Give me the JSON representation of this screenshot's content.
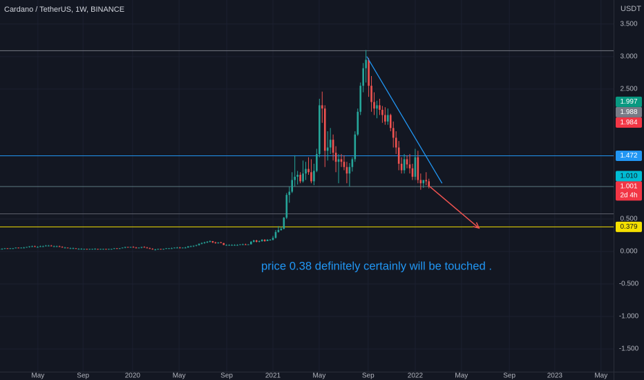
{
  "chart_data": {
    "type": "candlestick",
    "title": "Cardano / TetherUS, 1W, BINANCE",
    "currency": "USDT",
    "annotation": "price 0.38 definitely certainly will be touched .",
    "up_color": "#26a69a",
    "down_color": "#ef5350",
    "grid": true,
    "xlim": [
      0.25,
      224.5
    ],
    "ylim": [
      -1.85,
      3.87
    ],
    "xticks": [
      {
        "value": 14.1,
        "label": "May"
      },
      {
        "value": 30.6,
        "label": "Sep"
      },
      {
        "value": 48.7,
        "label": "2020"
      },
      {
        "value": 65.7,
        "label": "May"
      },
      {
        "value": 83.1,
        "label": "Sep"
      },
      {
        "value": 100,
        "label": "2021"
      },
      {
        "value": 116.9,
        "label": "May"
      },
      {
        "value": 134.8,
        "label": "Sep"
      },
      {
        "value": 152,
        "label": "2022"
      },
      {
        "value": 168.9,
        "label": "May"
      },
      {
        "value": 186.4,
        "label": "Sep"
      },
      {
        "value": 203,
        "label": "2023"
      },
      {
        "value": 219.9,
        "label": "May"
      }
    ],
    "yticks": [
      {
        "value": 3.5,
        "label": "3.500"
      },
      {
        "value": 3,
        "label": "3.000"
      },
      {
        "value": 2.5,
        "label": "2.500"
      },
      {
        "value": 0.5,
        "label": "0.500"
      },
      {
        "value": 0,
        "label": "0.000"
      },
      {
        "value": -0.5,
        "label": "-0.500"
      },
      {
        "value": -1,
        "label": "-1.000"
      },
      {
        "value": -1.5,
        "label": "-1.500"
      }
    ],
    "x": [
      0,
      1,
      2,
      3,
      4,
      5,
      6,
      7,
      8,
      9,
      10,
      11,
      12,
      13,
      14,
      15,
      16,
      17,
      18,
      19,
      20,
      21,
      22,
      23,
      24,
      25,
      26,
      27,
      28,
      29,
      30,
      31,
      32,
      33,
      34,
      35,
      36,
      37,
      38,
      39,
      40,
      41,
      42,
      43,
      44,
      45,
      46,
      47,
      48,
      49,
      50,
      51,
      52,
      53,
      54,
      55,
      56,
      57,
      58,
      59,
      60,
      61,
      62,
      63,
      64,
      65,
      66,
      67,
      68,
      69,
      70,
      71,
      72,
      73,
      74,
      75,
      76,
      77,
      78,
      79,
      80,
      81,
      82,
      83,
      84,
      85,
      86,
      87,
      88,
      89,
      90,
      91,
      92,
      93,
      94,
      95,
      96,
      97,
      98,
      99,
      100,
      101,
      102,
      103,
      104,
      105,
      106,
      107,
      108,
      109,
      110,
      111,
      112,
      113,
      114,
      115,
      116,
      117,
      118,
      119,
      120,
      121,
      122,
      123,
      124,
      125,
      126,
      127,
      128,
      129,
      130,
      131,
      132,
      133,
      134,
      135,
      136,
      137,
      138,
      139,
      140,
      141,
      142,
      143,
      144,
      145,
      146,
      147,
      148,
      149,
      150,
      151,
      152,
      153,
      154,
      155,
      156,
      157
    ],
    "ohlc": [
      [
        0.04,
        0.04,
        0.03,
        0.04
      ],
      [
        0.04,
        0.05,
        0.04,
        0.04
      ],
      [
        0.04,
        0.05,
        0.04,
        0.05
      ],
      [
        0.05,
        0.05,
        0.04,
        0.04
      ],
      [
        0.04,
        0.05,
        0.04,
        0.05
      ],
      [
        0.05,
        0.05,
        0.04,
        0.05
      ],
      [
        0.05,
        0.06,
        0.05,
        0.06
      ],
      [
        0.06,
        0.06,
        0.05,
        0.05
      ],
      [
        0.05,
        0.06,
        0.05,
        0.06
      ],
      [
        0.06,
        0.07,
        0.05,
        0.06
      ],
      [
        0.06,
        0.07,
        0.06,
        0.07
      ],
      [
        0.07,
        0.08,
        0.06,
        0.08
      ],
      [
        0.08,
        0.09,
        0.07,
        0.08
      ],
      [
        0.08,
        0.09,
        0.07,
        0.07
      ],
      [
        0.07,
        0.08,
        0.06,
        0.07
      ],
      [
        0.07,
        0.09,
        0.07,
        0.08
      ],
      [
        0.08,
        0.09,
        0.07,
        0.08
      ],
      [
        0.08,
        0.1,
        0.08,
        0.09
      ],
      [
        0.09,
        0.1,
        0.08,
        0.09
      ],
      [
        0.09,
        0.1,
        0.08,
        0.08
      ],
      [
        0.08,
        0.09,
        0.07,
        0.08
      ],
      [
        0.08,
        0.09,
        0.07,
        0.08
      ],
      [
        0.08,
        0.09,
        0.07,
        0.07
      ],
      [
        0.07,
        0.08,
        0.06,
        0.06
      ],
      [
        0.06,
        0.07,
        0.05,
        0.06
      ],
      [
        0.06,
        0.06,
        0.05,
        0.05
      ],
      [
        0.05,
        0.06,
        0.05,
        0.05
      ],
      [
        0.05,
        0.06,
        0.04,
        0.05
      ],
      [
        0.05,
        0.05,
        0.04,
        0.04
      ],
      [
        0.04,
        0.05,
        0.04,
        0.04
      ],
      [
        0.04,
        0.05,
        0.04,
        0.04
      ],
      [
        0.04,
        0.04,
        0.03,
        0.04
      ],
      [
        0.04,
        0.04,
        0.03,
        0.03
      ],
      [
        0.03,
        0.04,
        0.03,
        0.04
      ],
      [
        0.04,
        0.04,
        0.03,
        0.04
      ],
      [
        0.04,
        0.05,
        0.04,
        0.04
      ],
      [
        0.04,
        0.04,
        0.03,
        0.03
      ],
      [
        0.03,
        0.04,
        0.03,
        0.04
      ],
      [
        0.04,
        0.04,
        0.03,
        0.04
      ],
      [
        0.04,
        0.04,
        0.03,
        0.03
      ],
      [
        0.03,
        0.04,
        0.03,
        0.04
      ],
      [
        0.04,
        0.04,
        0.03,
        0.04
      ],
      [
        0.04,
        0.05,
        0.04,
        0.05
      ],
      [
        0.05,
        0.05,
        0.04,
        0.04
      ],
      [
        0.04,
        0.05,
        0.04,
        0.05
      ],
      [
        0.05,
        0.06,
        0.05,
        0.06
      ],
      [
        0.06,
        0.07,
        0.05,
        0.07
      ],
      [
        0.07,
        0.07,
        0.06,
        0.06
      ],
      [
        0.06,
        0.07,
        0.06,
        0.07
      ],
      [
        0.07,
        0.08,
        0.06,
        0.06
      ],
      [
        0.06,
        0.07,
        0.05,
        0.05
      ],
      [
        0.05,
        0.06,
        0.05,
        0.06
      ],
      [
        0.06,
        0.07,
        0.05,
        0.07
      ],
      [
        0.07,
        0.08,
        0.06,
        0.06
      ],
      [
        0.06,
        0.07,
        0.05,
        0.05
      ],
      [
        0.05,
        0.06,
        0.04,
        0.04
      ],
      [
        0.04,
        0.05,
        0.03,
        0.03
      ],
      [
        0.03,
        0.04,
        0.02,
        0.03
      ],
      [
        0.03,
        0.04,
        0.03,
        0.04
      ],
      [
        0.04,
        0.04,
        0.03,
        0.03
      ],
      [
        0.03,
        0.04,
        0.03,
        0.04
      ],
      [
        0.04,
        0.05,
        0.04,
        0.05
      ],
      [
        0.05,
        0.05,
        0.04,
        0.05
      ],
      [
        0.05,
        0.06,
        0.05,
        0.05
      ],
      [
        0.05,
        0.06,
        0.05,
        0.06
      ],
      [
        0.06,
        0.07,
        0.05,
        0.06
      ],
      [
        0.06,
        0.07,
        0.05,
        0.05
      ],
      [
        0.05,
        0.06,
        0.05,
        0.06
      ],
      [
        0.06,
        0.07,
        0.05,
        0.06
      ],
      [
        0.06,
        0.08,
        0.06,
        0.08
      ],
      [
        0.08,
        0.09,
        0.07,
        0.08
      ],
      [
        0.08,
        0.09,
        0.07,
        0.09
      ],
      [
        0.09,
        0.1,
        0.08,
        0.1
      ],
      [
        0.1,
        0.12,
        0.09,
        0.12
      ],
      [
        0.12,
        0.14,
        0.11,
        0.13
      ],
      [
        0.13,
        0.15,
        0.12,
        0.14
      ],
      [
        0.14,
        0.16,
        0.13,
        0.15
      ],
      [
        0.15,
        0.17,
        0.14,
        0.16
      ],
      [
        0.16,
        0.16,
        0.13,
        0.14
      ],
      [
        0.14,
        0.15,
        0.12,
        0.13
      ],
      [
        0.13,
        0.14,
        0.12,
        0.14
      ],
      [
        0.14,
        0.15,
        0.13,
        0.13
      ],
      [
        0.13,
        0.13,
        0.1,
        0.1
      ],
      [
        0.1,
        0.11,
        0.09,
        0.1
      ],
      [
        0.1,
        0.11,
        0.09,
        0.1
      ],
      [
        0.1,
        0.11,
        0.09,
        0.1
      ],
      [
        0.1,
        0.11,
        0.09,
        0.1
      ],
      [
        0.1,
        0.11,
        0.09,
        0.1
      ],
      [
        0.1,
        0.11,
        0.1,
        0.11
      ],
      [
        0.11,
        0.12,
        0.1,
        0.11
      ],
      [
        0.11,
        0.12,
        0.1,
        0.1
      ],
      [
        0.1,
        0.11,
        0.1,
        0.11
      ],
      [
        0.11,
        0.16,
        0.11,
        0.15
      ],
      [
        0.15,
        0.18,
        0.14,
        0.17
      ],
      [
        0.17,
        0.18,
        0.14,
        0.15
      ],
      [
        0.15,
        0.17,
        0.14,
        0.16
      ],
      [
        0.16,
        0.19,
        0.15,
        0.18
      ],
      [
        0.18,
        0.19,
        0.15,
        0.16
      ],
      [
        0.16,
        0.19,
        0.16,
        0.18
      ],
      [
        0.18,
        0.19,
        0.17,
        0.18
      ],
      [
        0.18,
        0.24,
        0.17,
        0.21
      ],
      [
        0.21,
        0.33,
        0.2,
        0.3
      ],
      [
        0.3,
        0.39,
        0.29,
        0.33
      ],
      [
        0.33,
        0.38,
        0.32,
        0.35
      ],
      [
        0.35,
        0.53,
        0.34,
        0.52
      ],
      [
        0.52,
        0.9,
        0.5,
        0.87
      ],
      [
        0.87,
        1.0,
        0.75,
        0.92
      ],
      [
        0.92,
        1.22,
        0.9,
        1.1
      ],
      [
        1.1,
        1.48,
        1.0,
        1.15
      ],
      [
        1.15,
        1.24,
        1.03,
        1.18
      ],
      [
        1.18,
        1.22,
        1.05,
        1.08
      ],
      [
        1.08,
        1.4,
        1.06,
        1.2
      ],
      [
        1.2,
        1.38,
        1.1,
        1.27
      ],
      [
        1.27,
        1.45,
        1.18,
        1.22
      ],
      [
        1.22,
        1.42,
        1.05,
        1.08
      ],
      [
        1.08,
        1.35,
        1.02,
        1.24
      ],
      [
        1.24,
        1.58,
        1.22,
        1.5
      ],
      [
        1.5,
        2.35,
        1.45,
        2.25
      ],
      [
        2.25,
        2.46,
        1.98,
        2.2
      ],
      [
        2.2,
        2.25,
        1.3,
        1.55
      ],
      [
        1.55,
        1.85,
        1.4,
        1.6
      ],
      [
        1.6,
        1.9,
        1.5,
        1.72
      ],
      [
        1.72,
        1.8,
        1.4,
        1.52
      ],
      [
        1.52,
        1.62,
        1.22,
        1.38
      ],
      [
        1.38,
        1.5,
        1.05,
        1.42
      ],
      [
        1.42,
        1.5,
        1.3,
        1.38
      ],
      [
        1.38,
        1.48,
        1.25,
        1.3
      ],
      [
        1.3,
        1.38,
        1.05,
        1.2
      ],
      [
        1.2,
        1.36,
        1.0,
        1.3
      ],
      [
        1.3,
        1.45,
        1.23,
        1.42
      ],
      [
        1.42,
        1.85,
        1.38,
        1.8
      ],
      [
        1.8,
        2.2,
        1.78,
        2.15
      ],
      [
        2.15,
        2.6,
        2.1,
        2.55
      ],
      [
        2.55,
        2.9,
        2.45,
        2.82
      ],
      [
        2.82,
        3.1,
        2.6,
        2.95
      ],
      [
        2.95,
        2.98,
        2.38,
        2.55
      ],
      [
        2.55,
        2.7,
        2.15,
        2.3
      ],
      [
        2.3,
        2.45,
        2.1,
        2.2
      ],
      [
        2.2,
        2.32,
        2.05,
        2.25
      ],
      [
        2.25,
        2.35,
        2.1,
        2.18
      ],
      [
        2.18,
        2.24,
        1.98,
        2.1
      ],
      [
        2.1,
        2.22,
        1.95,
        2.0
      ],
      [
        2.0,
        2.2,
        1.95,
        2.1
      ],
      [
        2.1,
        2.12,
        1.85,
        1.9
      ],
      [
        1.9,
        2.0,
        1.6,
        1.75
      ],
      [
        1.75,
        1.85,
        1.5,
        1.6
      ],
      [
        1.6,
        1.7,
        1.25,
        1.35
      ],
      [
        1.35,
        1.45,
        1.2,
        1.25
      ],
      [
        1.25,
        1.5,
        1.2,
        1.42
      ],
      [
        1.42,
        1.48,
        1.28,
        1.34
      ],
      [
        1.34,
        1.5,
        1.2,
        1.28
      ],
      [
        1.28,
        1.35,
        1.1,
        1.15
      ],
      [
        1.15,
        1.58,
        1.1,
        1.45
      ],
      [
        1.45,
        1.55,
        1.05,
        1.1
      ],
      [
        1.1,
        1.2,
        0.95,
        1.05
      ],
      [
        1.05,
        1.1,
        0.98,
        1.1
      ],
      [
        1.1,
        1.22,
        1.02,
        1.08
      ],
      [
        1.08,
        1.12,
        0.97,
        1.0
      ]
    ],
    "levels": [
      {
        "value": 3.09,
        "color": "#787b86"
      },
      {
        "value": 1.472,
        "color": "#2196f3"
      },
      {
        "value": 1.0,
        "color": "#5d7a80"
      },
      {
        "value": 0.58,
        "color": "#5d606b"
      },
      {
        "value": 0.379,
        "color": "#f5e000"
      }
    ],
    "trend_line": {
      "x": [
        134.3,
        161.8
      ],
      "y": [
        3.0,
        1.05
      ],
      "color": "#2196f3"
    },
    "arrow": {
      "x": [
        157.3,
        175.3
      ],
      "y": [
        1.0,
        0.36
      ],
      "color": "#ef5350"
    },
    "badges": [
      {
        "value": 1.997,
        "color": "#089981",
        "text_color": "#ffffff"
      },
      {
        "value": 1.988,
        "color": "#787b86",
        "text_color": "#ffffff"
      },
      {
        "value": 1.984,
        "color": "#f23645",
        "text_color": "#ffffff"
      },
      {
        "value": 1.472,
        "color": "#2196f3",
        "text_color": "#ffffff"
      },
      {
        "value": 1.01,
        "label": "1.010",
        "color": "#00bcd4",
        "text_color": "#131722"
      },
      {
        "value": 1.001,
        "note": "2d 4h",
        "color": "#f23645",
        "text_color": "#ffffff"
      },
      {
        "value": 0.379,
        "color": "#f5e000",
        "text_color": "#131722"
      }
    ]
  }
}
